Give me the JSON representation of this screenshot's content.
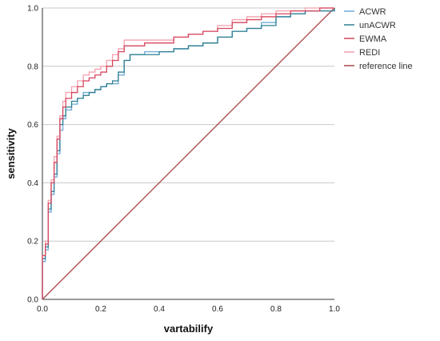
{
  "chart_data": {
    "type": "line",
    "title": "",
    "xlabel": "vartabilify",
    "ylabel": "sensitivity",
    "xlim": [
      0.0,
      1.0
    ],
    "ylim": [
      0.0,
      1.0
    ],
    "x_ticks": [
      "0.0",
      "0.2",
      "0.4",
      "0.6",
      "0.8",
      "1.0"
    ],
    "y_ticks": [
      "0.0",
      "0.2",
      "0.4",
      "0.6",
      "0.8",
      "1.0"
    ],
    "grid": "horizontal",
    "legend_position": "right",
    "series": [
      {
        "name": "ACWR",
        "color": "#6fa9d6",
        "x": [
          0,
          0,
          0.01,
          0.02,
          0.03,
          0.04,
          0.05,
          0.06,
          0.07,
          0.08,
          0.1,
          0.12,
          0.14,
          0.16,
          0.18,
          0.2,
          0.22,
          0.24,
          0.26,
          0.28,
          0.3,
          0.35,
          0.4,
          0.45,
          0.5,
          0.55,
          0.6,
          0.65,
          0.7,
          0.75,
          0.8,
          0.85,
          0.9,
          0.95,
          1.0
        ],
        "y": [
          0,
          0.13,
          0.17,
          0.3,
          0.36,
          0.42,
          0.5,
          0.58,
          0.62,
          0.65,
          0.67,
          0.69,
          0.71,
          0.71,
          0.72,
          0.73,
          0.74,
          0.74,
          0.77,
          0.82,
          0.84,
          0.85,
          0.85,
          0.86,
          0.87,
          0.88,
          0.9,
          0.92,
          0.93,
          0.95,
          0.97,
          0.98,
          0.99,
          0.99,
          1.0
        ]
      },
      {
        "name": "unACWR",
        "color": "#2e7f93",
        "x": [
          0,
          0,
          0.01,
          0.02,
          0.03,
          0.04,
          0.05,
          0.06,
          0.07,
          0.08,
          0.1,
          0.12,
          0.14,
          0.16,
          0.18,
          0.2,
          0.22,
          0.24,
          0.26,
          0.28,
          0.3,
          0.35,
          0.4,
          0.45,
          0.5,
          0.55,
          0.6,
          0.65,
          0.7,
          0.75,
          0.8,
          0.85,
          0.9,
          0.95,
          1.0
        ],
        "y": [
          0,
          0.14,
          0.18,
          0.31,
          0.37,
          0.43,
          0.51,
          0.6,
          0.63,
          0.66,
          0.68,
          0.69,
          0.7,
          0.71,
          0.72,
          0.73,
          0.74,
          0.75,
          0.78,
          0.82,
          0.84,
          0.84,
          0.85,
          0.86,
          0.87,
          0.88,
          0.9,
          0.92,
          0.93,
          0.94,
          0.97,
          0.98,
          0.99,
          0.99,
          1.0
        ]
      },
      {
        "name": "EWMA",
        "color": "#d6455e",
        "x": [
          0,
          0,
          0.01,
          0.02,
          0.03,
          0.04,
          0.05,
          0.06,
          0.07,
          0.08,
          0.1,
          0.12,
          0.14,
          0.16,
          0.18,
          0.2,
          0.22,
          0.24,
          0.26,
          0.28,
          0.3,
          0.35,
          0.4,
          0.45,
          0.5,
          0.55,
          0.6,
          0.65,
          0.7,
          0.75,
          0.8,
          0.85,
          0.9,
          0.95,
          1.0
        ],
        "y": [
          0,
          0.15,
          0.19,
          0.33,
          0.4,
          0.47,
          0.55,
          0.62,
          0.66,
          0.69,
          0.71,
          0.73,
          0.75,
          0.76,
          0.77,
          0.78,
          0.8,
          0.82,
          0.85,
          0.87,
          0.87,
          0.88,
          0.88,
          0.9,
          0.91,
          0.92,
          0.93,
          0.95,
          0.96,
          0.97,
          0.98,
          0.99,
          0.99,
          1.0,
          1.0
        ]
      },
      {
        "name": "REDI",
        "color": "#f3a1ac",
        "x": [
          0,
          0,
          0.01,
          0.02,
          0.03,
          0.04,
          0.05,
          0.06,
          0.07,
          0.08,
          0.1,
          0.12,
          0.14,
          0.16,
          0.18,
          0.2,
          0.22,
          0.24,
          0.26,
          0.28,
          0.3,
          0.35,
          0.4,
          0.45,
          0.5,
          0.55,
          0.6,
          0.65,
          0.7,
          0.75,
          0.8,
          0.85,
          0.9,
          0.95,
          1.0
        ],
        "y": [
          0,
          0.15,
          0.2,
          0.34,
          0.41,
          0.49,
          0.56,
          0.63,
          0.68,
          0.71,
          0.73,
          0.75,
          0.77,
          0.78,
          0.79,
          0.8,
          0.82,
          0.84,
          0.86,
          0.89,
          0.89,
          0.89,
          0.89,
          0.9,
          0.91,
          0.92,
          0.94,
          0.96,
          0.97,
          0.98,
          0.99,
          0.99,
          1.0,
          1.0,
          1.0
        ]
      },
      {
        "name": "reference line",
        "color": "#a8494d",
        "x": [
          0,
          1
        ],
        "y": [
          0,
          1
        ]
      }
    ]
  }
}
